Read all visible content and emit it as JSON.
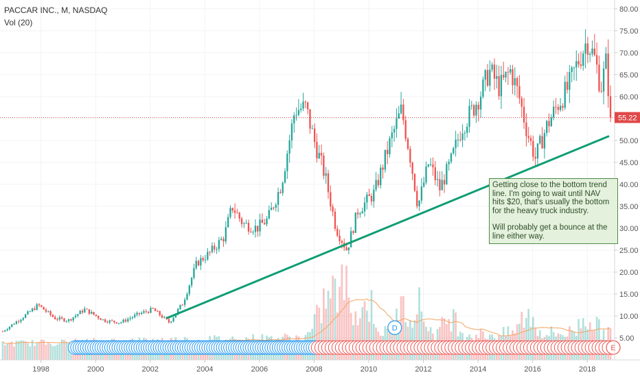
{
  "header": {
    "symbol": "PACCAR INC., M, NASDAQ",
    "indicator": "Vol (20)"
  },
  "note": {
    "paragraph1": "Getting close to the bottom trend line.  I'm going to wait until NAV hits $20, that's usually the bottom for the heavy truck industry.",
    "paragraph2": "Will probably get a bounce at the line either way."
  },
  "colors": {
    "up": "#26a69a",
    "down": "#ef5350",
    "trend": "#0f9d74",
    "price_line": "#e04848",
    "vol_ma": "#f4a460",
    "dividend": "#2196f3",
    "earnings": "#ef5350"
  },
  "chart_data": {
    "type": "candlestick",
    "yaxis": {
      "min": 0,
      "max": 82,
      "ticks": [
        5,
        10,
        15,
        20,
        25,
        30,
        35,
        40,
        45,
        50,
        55,
        60,
        65,
        70,
        75,
        80
      ],
      "tick_labels": [
        "5.00",
        "10.00",
        "15.00",
        "20.00",
        "25.00",
        "30.00",
        "35.00",
        "40.00",
        "45.00",
        "50.00",
        "55.00",
        "60.00",
        "65.00",
        "70.00",
        "75.00",
        "80.00"
      ]
    },
    "xaxis": {
      "min": 1996.5,
      "max": 2019.0,
      "ticks": [
        1998,
        2000,
        2002,
        2004,
        2006,
        2008,
        2010,
        2012,
        2014,
        2016,
        2018
      ],
      "tick_labels": [
        "1998",
        "2000",
        "2002",
        "2004",
        "2006",
        "2008",
        "2010",
        "2012",
        "2014",
        "2016",
        "2018"
      ]
    },
    "last_price": 55.22,
    "last_price_label": "55.22",
    "trend_line": [
      [
        2002.6,
        9.5
      ],
      [
        2018.8,
        51.0
      ]
    ],
    "price_keypoints": [
      [
        1996.6,
        6.5
      ],
      [
        1997.5,
        10.5
      ],
      [
        1997.9,
        12.5
      ],
      [
        1998.5,
        9.5
      ],
      [
        1999.0,
        9.0
      ],
      [
        1999.6,
        11.5
      ],
      [
        2000.3,
        9.0
      ],
      [
        2000.9,
        8.5
      ],
      [
        2001.6,
        10.5
      ],
      [
        2002.1,
        11.5
      ],
      [
        2002.7,
        8.5
      ],
      [
        2003.2,
        13.0
      ],
      [
        2003.7,
        22.0
      ],
      [
        2004.2,
        24.5
      ],
      [
        2004.7,
        28.0
      ],
      [
        2005.0,
        35.0
      ],
      [
        2005.4,
        31.0
      ],
      [
        2005.9,
        30.0
      ],
      [
        2006.3,
        32.0
      ],
      [
        2006.8,
        40.0
      ],
      [
        2007.3,
        57.0
      ],
      [
        2007.7,
        57.5
      ],
      [
        2008.0,
        50.0
      ],
      [
        2008.4,
        42.0
      ],
      [
        2008.8,
        30.0
      ],
      [
        2009.2,
        25.0
      ],
      [
        2009.6,
        34.0
      ],
      [
        2010.2,
        38.0
      ],
      [
        2010.8,
        50.0
      ],
      [
        2011.2,
        57.0
      ],
      [
        2011.5,
        47.0
      ],
      [
        2011.8,
        35.0
      ],
      [
        2012.2,
        45.0
      ],
      [
        2012.6,
        39.0
      ],
      [
        2013.0,
        45.0
      ],
      [
        2013.4,
        53.0
      ],
      [
        2013.8,
        57.0
      ],
      [
        2014.2,
        62.0
      ],
      [
        2014.4,
        66.0
      ],
      [
        2014.8,
        62.0
      ],
      [
        2015.2,
        66.0
      ],
      [
        2015.5,
        60.0
      ],
      [
        2015.8,
        52.0
      ],
      [
        2016.1,
        46.0
      ],
      [
        2016.5,
        53.0
      ],
      [
        2016.9,
        58.0
      ],
      [
        2017.3,
        62.0
      ],
      [
        2017.6,
        67.0
      ],
      [
        2018.0,
        73.0
      ],
      [
        2018.3,
        68.0
      ],
      [
        2018.5,
        62.0
      ],
      [
        2018.7,
        68.0
      ],
      [
        2018.85,
        55.22
      ]
    ],
    "volume_peaks": [
      [
        2008.3,
        5.7
      ],
      [
        2008.7,
        7.6
      ],
      [
        2009.2,
        10.8
      ],
      [
        2010.0,
        8.0
      ],
      [
        2011.2,
        6.0
      ],
      [
        2011.8,
        7.2
      ],
      [
        2013.0,
        4.5
      ],
      [
        2015.8,
        4.5
      ],
      [
        2018.0,
        4.0
      ]
    ],
    "events": {
      "dividends": 100,
      "earnings": 86,
      "dividend_label": "D",
      "earnings_label": "E"
    }
  }
}
